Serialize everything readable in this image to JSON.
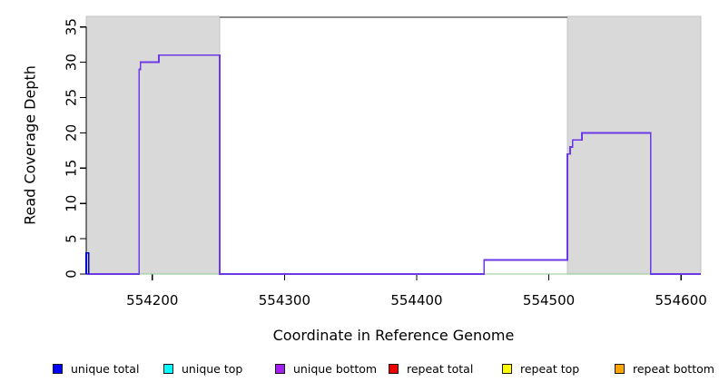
{
  "chart_data": {
    "type": "line",
    "subtype": "step-coverage",
    "title": "",
    "xlabel": "Coordinate in Reference Genome",
    "ylabel": "Read Coverage Depth",
    "xlim": [
      554150,
      554615
    ],
    "ylim": [
      0,
      36.5
    ],
    "xticks": [
      554200,
      554300,
      554400,
      554500,
      554600
    ],
    "yticks": [
      0,
      5,
      10,
      15,
      20,
      25,
      30,
      35
    ],
    "grid": false,
    "legend_position": "bottom",
    "shaded_regions": [
      {
        "name": "left-repeat-region",
        "x0": 554150,
        "x1": 554251,
        "color": "#d9d9d9"
      },
      {
        "name": "right-repeat-region",
        "x0": 554514,
        "x1": 554615,
        "color": "#d9d9d9"
      }
    ],
    "top_segment": {
      "name": "non-repeat-span",
      "x0": 554251,
      "x1": 554514,
      "y": 36.5,
      "color": "#8a8a8a"
    },
    "series": [
      {
        "name": "green-baseline",
        "color": "#8fca8f",
        "width": 1.4,
        "points": [
          [
            554190,
            0
          ],
          [
            554577,
            0
          ]
        ]
      },
      {
        "name": "unique-bottom",
        "color": "#6b3ae6",
        "width": 1.8,
        "points": [
          [
            554150,
            0
          ],
          [
            554190,
            0
          ],
          [
            554190,
            29
          ],
          [
            554191,
            29
          ],
          [
            554191,
            30
          ],
          [
            554205,
            30
          ],
          [
            554205,
            31
          ],
          [
            554251,
            31
          ],
          [
            554251,
            0
          ],
          [
            554451,
            0
          ],
          [
            554451,
            2
          ],
          [
            554514,
            2
          ],
          [
            554514,
            17
          ],
          [
            554516,
            17
          ],
          [
            554516,
            18
          ],
          [
            554518,
            18
          ],
          [
            554518,
            19
          ],
          [
            554525,
            19
          ],
          [
            554525,
            20
          ],
          [
            554577,
            20
          ],
          [
            554577,
            0
          ],
          [
            554615,
            0
          ]
        ]
      },
      {
        "name": "unique-total-spike",
        "color": "#0000cd",
        "width": 1.6,
        "points": [
          [
            554150,
            0
          ],
          [
            554150,
            3
          ],
          [
            554152,
            3
          ],
          [
            554152,
            0
          ]
        ]
      }
    ],
    "legend": [
      {
        "label": "unique total",
        "color": "#0000ff"
      },
      {
        "label": "unique top",
        "color": "#00ffff"
      },
      {
        "label": "unique bottom",
        "color": "#a020f0"
      },
      {
        "label": "repeat total",
        "color": "#ee0000"
      },
      {
        "label": "repeat top",
        "color": "#ffff00"
      },
      {
        "label": "repeat bottom",
        "color": "#ffa500"
      }
    ]
  }
}
